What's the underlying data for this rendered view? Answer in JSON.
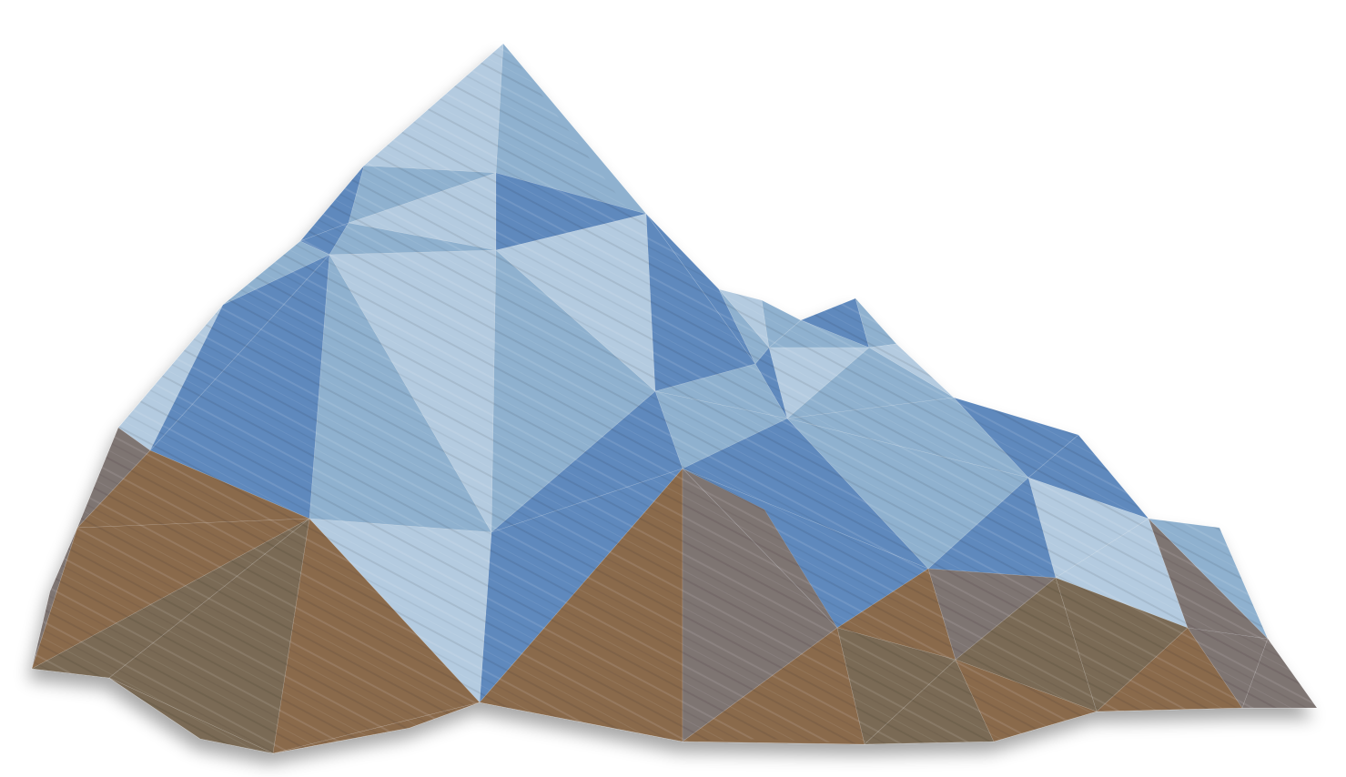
{
  "illustration": {
    "subject_icon": "low-poly-mountain-icon",
    "background_color": "#ffffff",
    "palette": {
      "ice_light": "#b4cbe0",
      "ice_mid": "#8fb1cf",
      "ice_dark": "#5f89bd",
      "rock_brown": "#8a6a4c",
      "rock_olive": "#7a6a55",
      "rock_gray": "#7e7472"
    }
  }
}
